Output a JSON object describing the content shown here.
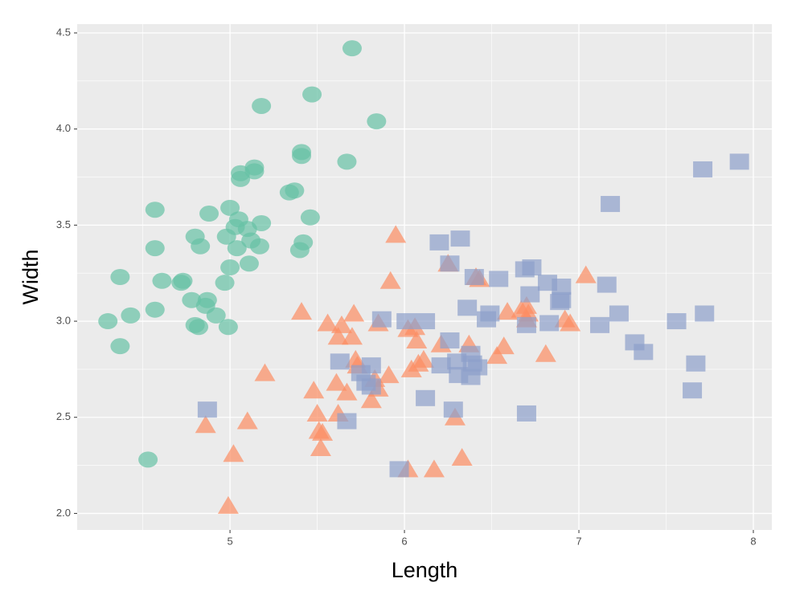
{
  "chart_data": {
    "type": "scatter",
    "x_label": "Length",
    "y_label": "Width",
    "xlim": [
      4.124,
      8.106
    ],
    "ylim": [
      1.914,
      4.546
    ],
    "xticks": [
      5,
      6,
      7,
      8
    ],
    "yticks": [
      {
        "value": 2,
        "label": "2.0"
      },
      2.5,
      {
        "value": 3,
        "label": "3.0"
      },
      3.5,
      {
        "value": 4,
        "label": "4.0"
      },
      4.5
    ],
    "minor_xticks": [
      4.5,
      5.5,
      6.5,
      7.5
    ],
    "minor_yticks": [
      2.25,
      2.75,
      3.25,
      3.75,
      4.25
    ],
    "grid": true,
    "series": [
      {
        "color": "#66c2a5",
        "marker": "circle",
        "x": [
          5.7,
          5.47,
          5.18,
          5.84,
          5.41,
          5.41,
          5.67,
          5.14,
          5.06,
          5.14,
          5.06,
          5.37,
          5.34,
          4.57,
          4.88,
          5.0,
          5.46,
          5.05,
          5.18,
          5.03,
          5.1,
          4.8,
          4.83,
          4.98,
          5.04,
          5.17,
          5.12,
          5.42,
          5.4,
          4.57,
          4.37,
          5.11,
          5.0,
          4.61,
          4.73,
          4.72,
          4.97,
          4.78,
          4.87,
          4.86,
          4.92,
          4.57,
          4.43,
          4.3,
          4.37,
          4.8,
          4.82,
          4.99,
          4.53
        ],
        "values": [
          4.42,
          4.18,
          4.12,
          4.04,
          3.88,
          3.86,
          3.83,
          3.8,
          3.77,
          3.78,
          3.74,
          3.68,
          3.67,
          3.58,
          3.56,
          3.59,
          3.54,
          3.53,
          3.51,
          3.49,
          3.48,
          3.44,
          3.39,
          3.44,
          3.38,
          3.39,
          3.42,
          3.41,
          3.37,
          3.38,
          3.23,
          3.3,
          3.28,
          3.21,
          3.21,
          3.2,
          3.2,
          3.11,
          3.11,
          3.08,
          3.03,
          3.06,
          3.03,
          3.0,
          2.87,
          2.98,
          2.97,
          2.97,
          2.28
        ]
      },
      {
        "color": "#fc8d62",
        "marker": "triangle",
        "x": [
          5.95,
          5.92,
          6.25,
          6.41,
          6.43,
          7.04,
          5.41,
          5.71,
          6.7,
          6.67,
          6.71,
          6.7,
          6.92,
          6.95,
          6.59,
          5.56,
          5.64,
          5.85,
          6.06,
          6.02,
          6.07,
          5.62,
          5.7,
          6.21,
          6.37,
          6.57,
          6.53,
          6.81,
          5.72,
          5.73,
          6.11,
          6.08,
          6.04,
          5.91,
          5.2,
          5.61,
          5.83,
          5.85,
          5.67,
          5.48,
          5.81,
          5.5,
          5.62,
          6.29,
          4.86,
          5.1,
          5.51,
          5.53,
          5.52,
          5.02,
          6.02,
          6.17,
          6.33,
          4.99
        ],
        "values": [
          3.45,
          3.21,
          3.3,
          3.23,
          3.22,
          3.24,
          3.05,
          3.04,
          3.08,
          3.06,
          3.04,
          3.01,
          3.01,
          2.99,
          3.05,
          2.99,
          2.98,
          2.99,
          2.97,
          2.96,
          2.9,
          2.92,
          2.92,
          2.88,
          2.88,
          2.87,
          2.82,
          2.83,
          2.8,
          2.77,
          2.8,
          2.78,
          2.75,
          2.72,
          2.73,
          2.68,
          2.7,
          2.65,
          2.63,
          2.64,
          2.59,
          2.52,
          2.52,
          2.5,
          2.46,
          2.48,
          2.43,
          2.42,
          2.34,
          2.31,
          2.23,
          2.23,
          2.29,
          2.04
        ]
      },
      {
        "color": "#8da0cb",
        "marker": "square",
        "x": [
          7.92,
          7.71,
          7.18,
          6.2,
          6.32,
          6.26,
          6.4,
          6.54,
          6.69,
          6.73,
          6.82,
          6.72,
          6.9,
          7.16,
          6.9,
          6.89,
          6.36,
          6.49,
          6.47,
          7.23,
          5.87,
          6.01,
          6.12,
          6.7,
          6.83,
          7.12,
          7.56,
          7.72,
          7.32,
          7.37,
          6.26,
          6.38,
          6.39,
          6.21,
          6.3,
          6.42,
          6.31,
          6.38,
          5.63,
          5.81,
          5.75,
          5.78,
          5.81,
          6.12,
          7.67,
          7.65,
          4.87,
          5.67,
          6.28,
          6.7,
          5.97
        ],
        "values": [
          3.83,
          3.79,
          3.61,
          3.41,
          3.43,
          3.3,
          3.23,
          3.22,
          3.27,
          3.28,
          3.2,
          3.14,
          3.18,
          3.19,
          3.11,
          3.1,
          3.07,
          3.04,
          3.01,
          3.04,
          3.01,
          3.0,
          3.0,
          2.98,
          2.99,
          2.98,
          3.0,
          3.04,
          2.89,
          2.84,
          2.9,
          2.83,
          2.78,
          2.77,
          2.79,
          2.76,
          2.72,
          2.71,
          2.79,
          2.77,
          2.73,
          2.68,
          2.66,
          2.6,
          2.78,
          2.64,
          2.54,
          2.48,
          2.54,
          2.52,
          2.23
        ]
      }
    ]
  }
}
